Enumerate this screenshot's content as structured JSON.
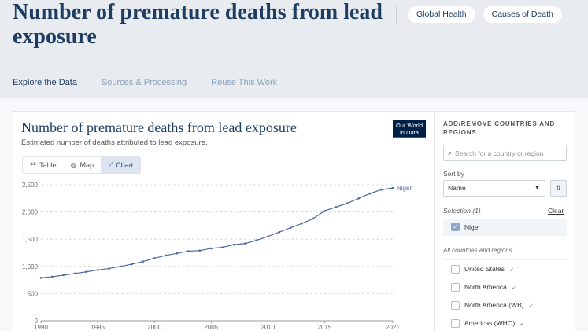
{
  "header": {
    "title": "Number of premature deaths from lead exposure",
    "tags": [
      "Global Health",
      "Causes of Death"
    ]
  },
  "page_tabs": [
    {
      "label": "Explore the Data",
      "active": true
    },
    {
      "label": "Sources & Processing",
      "active": false
    },
    {
      "label": "Reuse This Work",
      "active": false
    }
  ],
  "chart_card": {
    "title": "Number of premature deaths from lead exposure",
    "subtitle": "Estimated number of deaths attributed to lead exposure.",
    "logo_text": [
      "Our World",
      "in Data"
    ],
    "view_tabs": [
      {
        "label": "Table",
        "icon": "table-icon",
        "active": false
      },
      {
        "label": "Map",
        "icon": "globe-icon",
        "active": false
      },
      {
        "label": "Chart",
        "icon": "line-chart-icon",
        "active": true
      }
    ]
  },
  "chart_data": {
    "type": "line",
    "title": "Number of premature deaths from lead exposure",
    "subtitle": "Estimated number of deaths attributed to lead exposure.",
    "xlabel": "",
    "ylabel": "",
    "xlim": [
      1990,
      2021
    ],
    "ylim": [
      0,
      2500
    ],
    "x_ticks": [
      1990,
      1995,
      2000,
      2005,
      2010,
      2015,
      2021
    ],
    "y_ticks": [
      0,
      500,
      1000,
      1500,
      2000,
      2500
    ],
    "y_tick_labels": [
      "0",
      "500",
      "1,000",
      "1,500",
      "2,000",
      "2,500"
    ],
    "grid": true,
    "color": "#4c6a9c",
    "series": [
      {
        "name": "Niger",
        "x": [
          1990,
          1991,
          1992,
          1993,
          1994,
          1995,
          1996,
          1997,
          1998,
          1999,
          2000,
          2001,
          2002,
          2003,
          2004,
          2005,
          2006,
          2007,
          2008,
          2009,
          2010,
          2011,
          2012,
          2013,
          2014,
          2015,
          2016,
          2017,
          2018,
          2019,
          2020,
          2021
        ],
        "values": [
          790,
          810,
          840,
          870,
          900,
          935,
          960,
          1000,
          1040,
          1090,
          1150,
          1200,
          1240,
          1280,
          1290,
          1330,
          1350,
          1400,
          1420,
          1480,
          1550,
          1630,
          1710,
          1790,
          1880,
          2020,
          2090,
          2160,
          2250,
          2340,
          2410,
          2440
        ]
      }
    ]
  },
  "sidebar": {
    "title": "ADD/REMOVE COUNTRIES AND REGIONS",
    "search_placeholder": "Search for a country or region",
    "sort_label": "Sort by",
    "sort_value": "Name",
    "selection_label": "Selection (1)",
    "clear_label": "Clear",
    "selected": [
      {
        "label": "Niger",
        "checked": true
      }
    ],
    "all_label": "All countries and regions",
    "entities": [
      {
        "label": "United States"
      },
      {
        "label": "North America"
      },
      {
        "label": "North America (WB)"
      },
      {
        "label": "Americas (WHO)"
      }
    ]
  }
}
